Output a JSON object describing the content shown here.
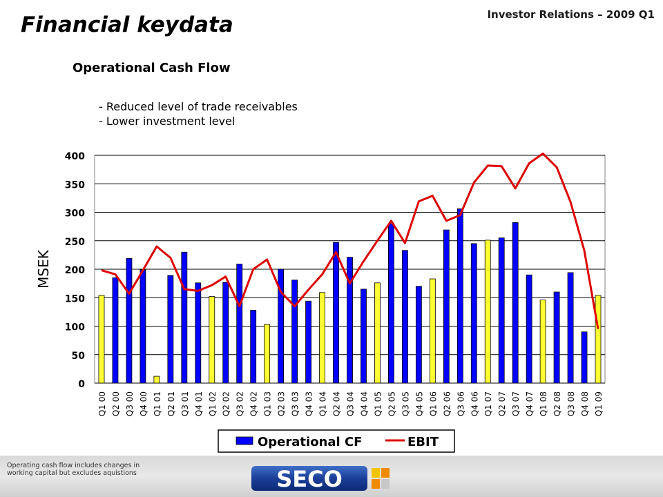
{
  "header": {
    "title": "Financial keydata",
    "top_right": "Investor Relations – 2009 Q1"
  },
  "section_title": "Operational Cash Flow",
  "bullets": [
    "- Reduced level of trade receivables",
    "- Lower investment level"
  ],
  "footer": {
    "note_line1": "Operating cash flow includes changes in",
    "note_line2": "working capital but excludes aquistions",
    "logo_text": "SECO"
  },
  "colors": {
    "bar_blue": "#0000ff",
    "bar_yellow": "#ffff33",
    "ebit_line": "#dd0000",
    "grid": "#000000"
  },
  "chart_data": {
    "type": "bar",
    "ylabel": "MSEK",
    "ylim": [
      0,
      400
    ],
    "yticks": [
      0,
      50,
      100,
      150,
      200,
      250,
      300,
      350,
      400
    ],
    "grid": true,
    "legend_position": "bottom",
    "categories": [
      "Q1 00",
      "Q2 00",
      "Q3 00",
      "Q4 00",
      "Q1 01",
      "Q2 01",
      "Q3 01",
      "Q4 01",
      "Q1 02",
      "Q2 02",
      "Q3 02",
      "Q4 02",
      "Q1 03",
      "Q2 03",
      "Q3 03",
      "Q4 03",
      "Q1 04",
      "Q2 04",
      "Q3 04",
      "Q4 04",
      "Q1 05",
      "Q2 05",
      "Q3 05",
      "Q4 05",
      "Q1 06",
      "Q2 06",
      "Q3 06",
      "Q4 06",
      "Q1 07",
      "Q2 07",
      "Q3 07",
      "Q4 07",
      "Q1 08",
      "Q2 08",
      "Q3 08",
      "Q4 08",
      "Q1 09"
    ],
    "series": [
      {
        "name": "Operational CF",
        "kind": "bar",
        "values": [
          154,
          185,
          219,
          199,
          12,
          189,
          230,
          176,
          152,
          177,
          209,
          128,
          103,
          200,
          181,
          144,
          159,
          247,
          221,
          165,
          176,
          280,
          233,
          170,
          183,
          269,
          306,
          245,
          251,
          255,
          282,
          190,
          146,
          160,
          194,
          90,
          154
        ],
        "highlight_quarter": "Q1",
        "highlight_color": "#ffff33"
      },
      {
        "name": "EBIT",
        "kind": "line",
        "values": [
          198,
          191,
          157,
          198,
          240,
          220,
          165,
          162,
          172,
          187,
          135,
          200,
          217,
          160,
          135,
          164,
          191,
          230,
          175,
          214,
          250,
          285,
          246,
          319,
          329,
          285,
          295,
          352,
          382,
          381,
          342,
          386,
          403,
          379,
          318,
          233,
          95
        ]
      }
    ]
  }
}
